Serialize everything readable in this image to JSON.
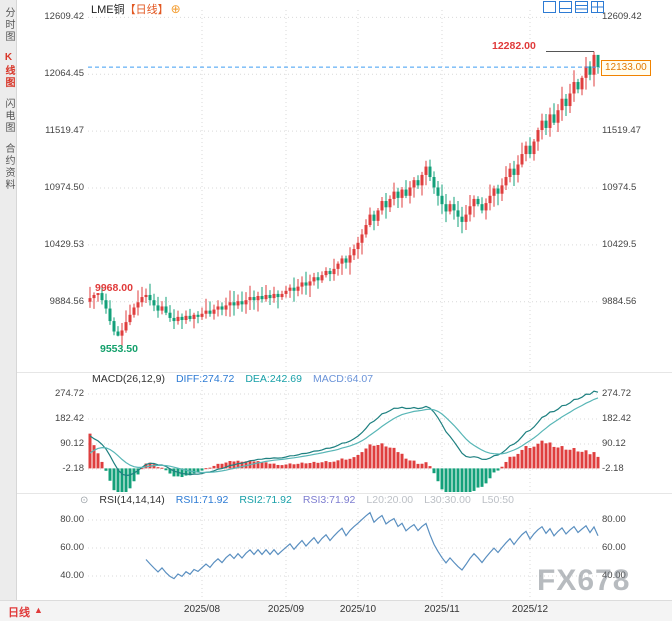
{
  "sidebar": {
    "items": [
      {
        "key": "time-chart",
        "label": "分时图",
        "active": false
      },
      {
        "key": "kline-chart",
        "label": "K线图",
        "active": true
      },
      {
        "key": "tick-chart",
        "label": "闪电图",
        "active": false
      },
      {
        "key": "contract-info",
        "label": "合约资料",
        "active": false
      }
    ]
  },
  "header": {
    "symbol": "LME铜",
    "period": "【日线】",
    "add_icon": "⊕",
    "layout_icons": [
      "layout-single",
      "layout-two-pane",
      "layout-three-pane",
      "layout-grid"
    ]
  },
  "icons": {
    "settings": "⊙"
  },
  "axes": {
    "left_labels": [
      "12609.42",
      "12064.45",
      "11519.47",
      "10974.50",
      "10429.53",
      "9884.56"
    ],
    "right_labels": [
      "12609.42",
      "11519.47",
      "10974.5",
      "10429.5",
      "9884.56"
    ],
    "x_labels": [
      "2025/08",
      "2025/09",
      "2025/10",
      "2025/11",
      "2025/12"
    ]
  },
  "price_marks": {
    "high": "12282.00",
    "low": "9553.50",
    "left_high": "9968.00",
    "last": "12133.00"
  },
  "macd_header": {
    "title": "MACD(26,12,9)",
    "diff": "DIFF:274.72",
    "dea": "DEA:242.69",
    "macd": "MACD:64.07"
  },
  "macd_axis": [
    "274.72",
    "182.42",
    "90.12",
    "-2.18"
  ],
  "rsi_header": {
    "title": "RSI(14,14,14)",
    "rsi1": "RSI1:71.92",
    "rsi2": "RSI2:71.92",
    "rsi3": "RSI3:71.92",
    "l20": "L20:20.00",
    "l30": "L30:30.00",
    "l50": "L50:50"
  },
  "rsi_axis": [
    "80.00",
    "60.00",
    "40.00"
  ],
  "footer": {
    "period": "日线",
    "arrow": "▲"
  },
  "watermark": "FX678",
  "colors": {
    "up": "#df3e3e",
    "down": "#13a07a",
    "diff_line": "#1e8080",
    "dea_line": "#58b6b6",
    "rsi_line": "#5a8fc0",
    "last_line": "#3d9df3",
    "grid": "#d9d9d9",
    "accent_orange": "#f08300"
  },
  "chart_data": {
    "type": "candlestick",
    "title": "LME铜 日线",
    "x_axis": [
      "2025/08",
      "2025/09",
      "2025/10",
      "2025/11",
      "2025/12"
    ],
    "month_candle_index": [
      28,
      49,
      67,
      88,
      110
    ],
    "y_ticks": [
      12609.42,
      12064.45,
      11519.47,
      10974.5,
      10429.53,
      9884.56
    ],
    "ylim": [
      9212,
      12680
    ],
    "last_price": 12133.0,
    "marks": {
      "high": {
        "index": 126,
        "price": 12282.0
      },
      "low": {
        "index": 7,
        "price": 9553.5
      },
      "left_high": {
        "index": 2,
        "price": 9968.0
      }
    },
    "closes": [
      9920,
      9950,
      9968,
      9900,
      9820,
      9700,
      9600,
      9560,
      9610,
      9690,
      9760,
      9830,
      9880,
      9930,
      9950,
      9900,
      9850,
      9800,
      9840,
      9780,
      9730,
      9700,
      9740,
      9710,
      9750,
      9720,
      9760,
      9740,
      9770,
      9800,
      9770,
      9810,
      9840,
      9810,
      9850,
      9880,
      9850,
      9890,
      9860,
      9900,
      9930,
      9900,
      9940,
      9910,
      9950,
      9920,
      9960,
      9930,
      9960,
      9990,
      10020,
      9990,
      10030,
      10070,
      10040,
      10080,
      10120,
      10090,
      10140,
      10180,
      10150,
      10200,
      10250,
      10300,
      10260,
      10330,
      10390,
      10450,
      10530,
      10620,
      10720,
      10660,
      10760,
      10850,
      10790,
      10870,
      10940,
      10880,
      10960,
      10900,
      10980,
      11050,
      11000,
      11100,
      11180,
      11080,
      10980,
      10900,
      10820,
      10750,
      10820,
      10760,
      10700,
      10650,
      10720,
      10800,
      10870,
      10820,
      10760,
      10830,
      10900,
      10970,
      10920,
      11000,
      11080,
      11160,
      11100,
      11200,
      11300,
      11380,
      11300,
      11420,
      11530,
      11620,
      11550,
      11680,
      11600,
      11720,
      11830,
      11760,
      11880,
      11990,
      11920,
      12030,
      12140,
      12060,
      12250,
      12133
    ],
    "indicators": {
      "macd": {
        "params": "(26,12,9)",
        "diff": 274.72,
        "dea": 242.69,
        "macd": 64.07,
        "y_ticks": [
          274.72,
          182.42,
          90.12,
          -2.18
        ]
      },
      "rsi": {
        "params": "(14,14,14)",
        "rsi1": 71.92,
        "rsi2": 71.92,
        "rsi3": 71.92,
        "levels": {
          "l20": 20.0,
          "l30": 30.0,
          "l50": 50
        },
        "y_ticks": [
          80.0,
          60.0,
          40.0
        ]
      }
    }
  }
}
